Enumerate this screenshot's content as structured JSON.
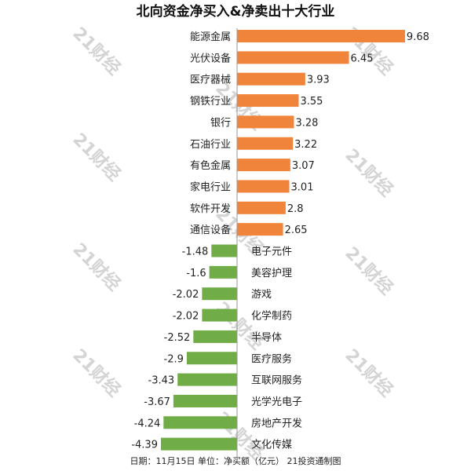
{
  "chart_data": {
    "type": "bar",
    "orientation": "horizontal",
    "title": "北向资金净买入&净卖出十大行业",
    "footer": "日期：11月15日  单位：净买额（亿元）  21投资通制图",
    "watermark": "21财经",
    "categories": [
      "能源金属",
      "光伏设备",
      "医疗器械",
      "钢铁行业",
      "银行",
      "石油行业",
      "有色金属",
      "家电行业",
      "软件开发",
      "通信设备",
      "电子元件",
      "美容护理",
      "游戏",
      "化学制药",
      "半导体",
      "医疗服务",
      "互联网服务",
      "光学光电子",
      "房地产开发",
      "文化传媒"
    ],
    "values": [
      9.68,
      6.45,
      3.93,
      3.55,
      3.28,
      3.22,
      3.07,
      3.01,
      2.8,
      2.65,
      -1.48,
      -1.6,
      -2.02,
      -2.02,
      -2.52,
      -2.9,
      -3.43,
      -3.67,
      -4.24,
      -4.39
    ],
    "value_labels": [
      "9.68",
      "6.45",
      "3.93",
      "3.55",
      "3.28",
      "3.22",
      "3.07",
      "3.01",
      "2.8",
      "2.65",
      "-1.48",
      "-1.6",
      "-2.02",
      "-2.02",
      "-2.52",
      "-2.9",
      "-3.43",
      "-3.67",
      "-4.24",
      "-4.39"
    ],
    "colors": {
      "positive": "#f0843a",
      "negative": "#70ad47",
      "axis": "#999999",
      "text": "#222222"
    },
    "xlim": [
      -4.39,
      9.68
    ],
    "grid": false
  }
}
